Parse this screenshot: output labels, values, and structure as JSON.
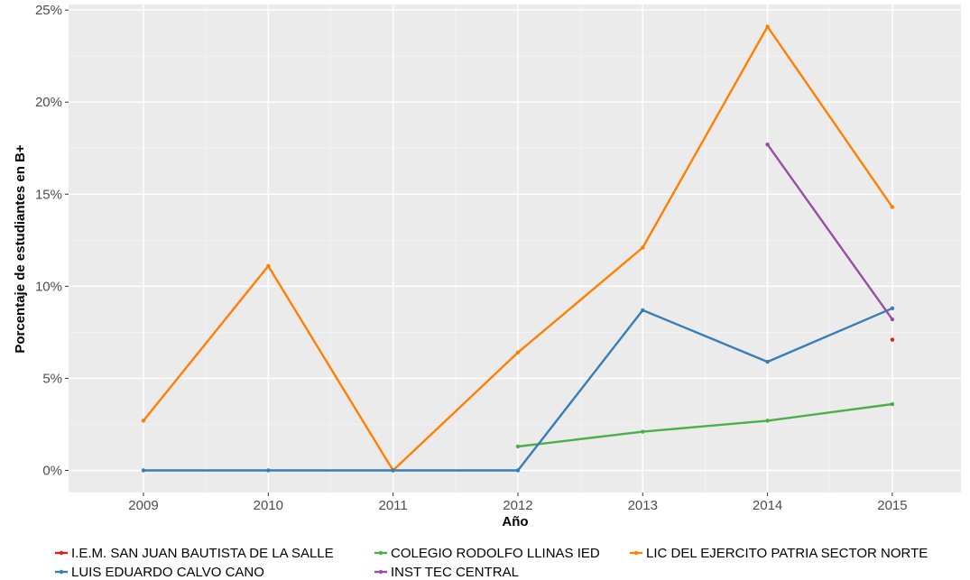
{
  "chart_data": {
    "type": "line",
    "xlabel": "Año",
    "ylabel": "Porcentaje de estudiantes en B+",
    "x": [
      2009,
      2010,
      2011,
      2012,
      2013,
      2014,
      2015
    ],
    "xlim": [
      2008.4,
      2015.55
    ],
    "ylim": [
      -1.2,
      25.3
    ],
    "y_ticks": [
      0,
      5,
      10,
      15,
      20,
      25
    ],
    "y_tick_labels": [
      "0%",
      "5%",
      "10%",
      "15%",
      "20%",
      "25%"
    ],
    "grid": true,
    "legend_position": "bottom",
    "series": [
      {
        "name": "I.E.M. SAN JUAN BAUTISTA DE LA SALLE",
        "color": "#e41a1c",
        "values": [
          null,
          null,
          null,
          null,
          null,
          null,
          7.1
        ]
      },
      {
        "name": "COLEGIO RODOLFO LLINAS IED",
        "color": "#4daf4a",
        "values": [
          null,
          null,
          null,
          1.3,
          2.1,
          2.7,
          3.6
        ]
      },
      {
        "name": "LIC DEL EJERCITO PATRIA SECTOR NORTE",
        "color": "#ff7f00",
        "values": [
          2.7,
          11.1,
          0,
          6.4,
          12.1,
          24.1,
          14.3
        ]
      },
      {
        "name": "LUIS EDUARDO CALVO CANO",
        "color": "#377eb8",
        "values": [
          0,
          0,
          0,
          0,
          8.7,
          5.9,
          8.8
        ]
      },
      {
        "name": "INST TEC CENTRAL",
        "color": "#984ea3",
        "values": [
          null,
          null,
          null,
          null,
          null,
          17.7,
          8.2
        ]
      }
    ]
  }
}
